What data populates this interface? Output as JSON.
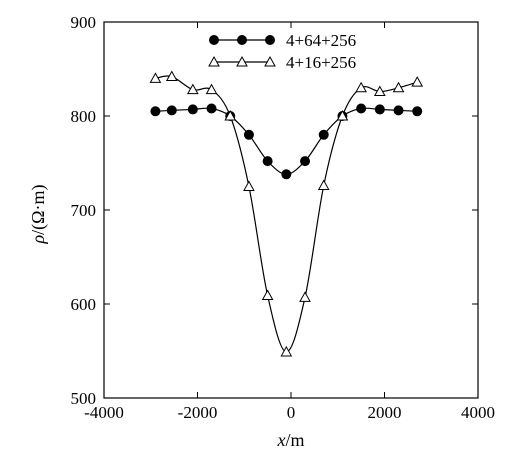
{
  "chart_data": {
    "type": "line",
    "xlabel_var": "x",
    "xlabel_unit": "/m",
    "ylabel_var": "ρ",
    "ylabel_unit": "/(Ω·m)",
    "xlim": [
      -4000,
      4000
    ],
    "ylim": [
      500,
      900
    ],
    "xticks": [
      -4000,
      -2000,
      0,
      2000,
      4000
    ],
    "yticks": [
      500,
      600,
      700,
      800,
      900
    ],
    "grid": false,
    "legend_position": "top-center",
    "series": [
      {
        "name": "4+64+256",
        "marker": "filled-circle",
        "color": "#000000",
        "x": [
          -2900,
          -2550,
          -2100,
          -1700,
          -1300,
          -900,
          -500,
          -100,
          300,
          700,
          1100,
          1500,
          1900,
          2300,
          2700
        ],
        "y": [
          805,
          806,
          807,
          808,
          800,
          780,
          752,
          738,
          752,
          780,
          800,
          808,
          807,
          806,
          805
        ]
      },
      {
        "name": "4+16+256",
        "marker": "open-triangle",
        "color": "#000000",
        "x": [
          -2900,
          -2550,
          -2100,
          -1700,
          -1300,
          -900,
          -500,
          -100,
          300,
          700,
          1100,
          1500,
          1900,
          2300,
          2700
        ],
        "y": [
          840,
          842,
          828,
          828,
          800,
          725,
          609,
          549,
          607,
          726,
          800,
          830,
          826,
          830,
          836
        ]
      }
    ]
  }
}
